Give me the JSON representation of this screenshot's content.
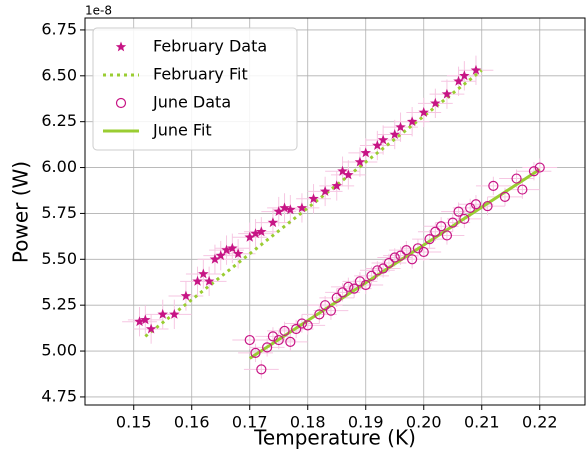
{
  "chart_data": {
    "type": "scatter",
    "y_label": "Power (W)",
    "x_label": "Temperature (K)",
    "offset_label": "1e-8",
    "xlim": [
      0.1416,
      0.2278
    ],
    "ylim": [
      4.706,
      6.815
    ],
    "xticks": [
      0.15,
      0.16,
      0.17,
      0.18,
      0.19,
      {
        "value": 0.2,
        "label": "0.20"
      },
      0.21,
      0.22
    ],
    "yticks": [
      4.75,
      {
        "value": 5.0,
        "label": "5.00"
      },
      5.25,
      {
        "value": 5.5,
        "label": "5.50"
      },
      5.75,
      {
        "value": 6.0,
        "label": "6.00"
      },
      6.25,
      {
        "value": 6.5,
        "label": "6.50"
      },
      6.75
    ],
    "grid": true,
    "legend": "upper left",
    "series": [
      {
        "name": "February Data",
        "kind": "points",
        "marker": "star",
        "color": "#c71585",
        "ecolor": "#f6c6e2",
        "xerr": 0.003,
        "yerr": 0.08,
        "x": [
          0.151,
          0.152,
          0.153,
          0.155,
          0.157,
          0.159,
          0.161,
          0.162,
          0.163,
          0.164,
          0.165,
          0.166,
          0.167,
          0.168,
          0.17,
          0.171,
          0.172,
          0.174,
          0.175,
          0.176,
          0.177,
          0.179,
          0.181,
          0.183,
          0.185,
          0.186,
          0.187,
          0.189,
          0.19,
          0.192,
          0.193,
          0.195,
          0.196,
          0.198,
          0.2,
          0.202,
          0.204,
          0.206,
          0.207,
          0.209
        ],
        "values": [
          5.16,
          5.17,
          5.12,
          5.2,
          5.2,
          5.3,
          5.38,
          5.42,
          5.38,
          5.5,
          5.52,
          5.55,
          5.56,
          5.53,
          5.62,
          5.64,
          5.65,
          5.7,
          5.76,
          5.78,
          5.77,
          5.78,
          5.83,
          5.87,
          5.9,
          5.98,
          5.96,
          6.03,
          6.08,
          6.12,
          6.15,
          6.18,
          6.22,
          6.25,
          6.3,
          6.35,
          6.4,
          6.47,
          6.5,
          6.53
        ]
      },
      {
        "name": "February Fit",
        "kind": "line",
        "dash": "dotted",
        "color": "#9acd32",
        "x": [
          0.152,
          0.21
        ],
        "values": [
          5.08,
          6.53
        ]
      },
      {
        "name": "June Data",
        "kind": "points",
        "marker": "circle",
        "color": "#c71585",
        "ecolor": "#f6c6e2",
        "xerr": 0.003,
        "yerr": 0.05,
        "x": [
          0.17,
          0.171,
          0.172,
          0.173,
          0.174,
          0.175,
          0.176,
          0.177,
          0.178,
          0.179,
          0.18,
          0.182,
          0.183,
          0.184,
          0.185,
          0.186,
          0.187,
          0.188,
          0.189,
          0.19,
          0.191,
          0.192,
          0.193,
          0.194,
          0.195,
          0.196,
          0.197,
          0.198,
          0.199,
          0.2,
          0.201,
          0.202,
          0.203,
          0.204,
          0.205,
          0.206,
          0.207,
          0.208,
          0.209,
          0.211,
          0.212,
          0.214,
          0.216,
          0.217,
          0.219,
          0.22
        ],
        "values": [
          5.06,
          4.99,
          4.9,
          5.02,
          5.08,
          5.06,
          5.11,
          5.05,
          5.12,
          5.15,
          5.14,
          5.2,
          5.25,
          5.22,
          5.29,
          5.32,
          5.35,
          5.34,
          5.38,
          5.36,
          5.41,
          5.44,
          5.45,
          5.48,
          5.51,
          5.52,
          5.55,
          5.5,
          5.56,
          5.54,
          5.61,
          5.65,
          5.68,
          5.63,
          5.7,
          5.76,
          5.72,
          5.78,
          5.8,
          5.79,
          5.9,
          5.84,
          5.94,
          5.88,
          5.98,
          6.0
        ]
      },
      {
        "name": "June Fit",
        "kind": "line",
        "dash": "solid",
        "color": "#9acd32",
        "x": [
          0.17,
          0.22
        ],
        "values": [
          4.96,
          5.99
        ]
      }
    ]
  }
}
